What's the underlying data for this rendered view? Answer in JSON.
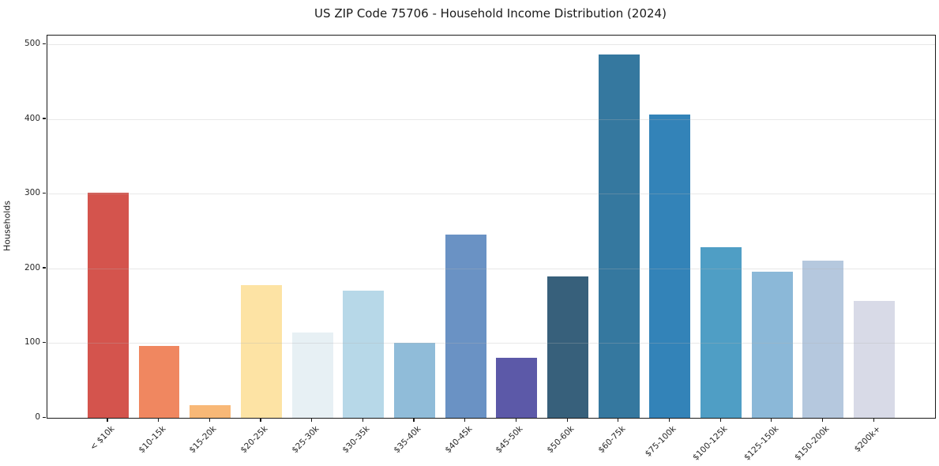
{
  "chart_data": {
    "type": "bar",
    "title": "US ZIP Code 75706 - Household Income Distribution (2024)",
    "xlabel": "",
    "ylabel": "Households",
    "categories": [
      "< $10k",
      "$10-15k",
      "$15-20k",
      "$20-25k",
      "$25-30k",
      "$30-35k",
      "$35-40k",
      "$40-45k",
      "$45-50k",
      "$50-60k",
      "$60-75k",
      "$75-100k",
      "$100-125k",
      "$125-150k",
      "$150-200k",
      "$200k+"
    ],
    "values": [
      302,
      96,
      17,
      178,
      114,
      170,
      101,
      245,
      80,
      189,
      487,
      406,
      229,
      196,
      211,
      157
    ],
    "bar_colors": [
      "#d4544d",
      "#f08760",
      "#f8b877",
      "#fde3a4",
      "#e7f0f4",
      "#b7d8e8",
      "#90bcd9",
      "#6a92c4",
      "#5c59a8",
      "#37607b",
      "#35789f",
      "#3383b8",
      "#4f9ec5",
      "#8bb8d8",
      "#b5c8de",
      "#d8dae7"
    ],
    "yticks": [
      0,
      100,
      200,
      300,
      400,
      500
    ],
    "ylim": [
      0,
      512
    ],
    "grid": "horizontal",
    "legend": "none",
    "background_color": "#ffffff",
    "spine_color": "#1a1a1a",
    "gridline_color": "#e9e9e9",
    "tick_label_color": "#262626"
  }
}
